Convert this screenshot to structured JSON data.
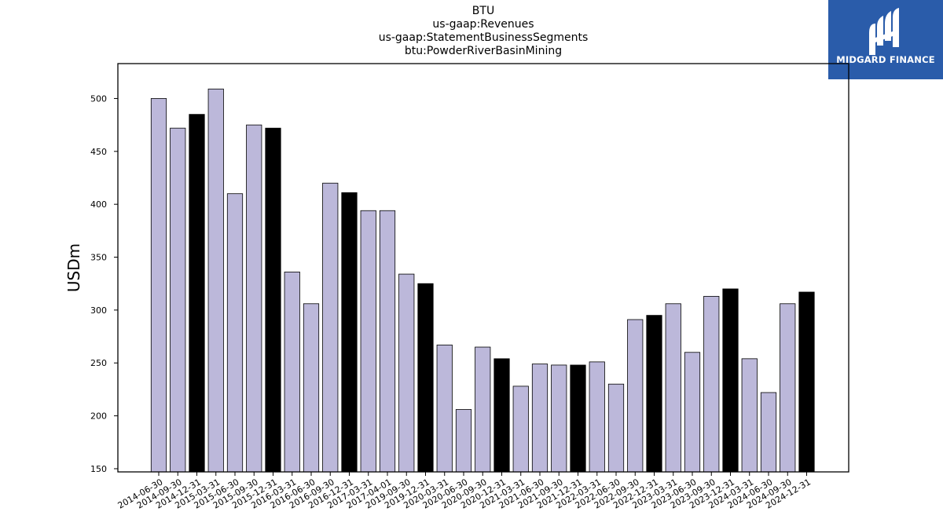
{
  "header": {
    "line1": "BTU",
    "line2": "us-gaap:Revenues",
    "line3": "us-gaap:StatementBusinessSegments",
    "line4": "btu:PowderRiverBasinMining"
  },
  "logo": {
    "text": "MIDGARD FINANCE",
    "color": "#2a5caa"
  },
  "colors": {
    "bar_default": "#bcb8da",
    "bar_highlight": "#000000",
    "bar_edge": "#000000"
  },
  "chart_data": {
    "type": "bar",
    "title": "BTU\nus-gaap:Revenues\nus-gaap:StatementBusinessSegments\nbtu:PowderRiverBasinMining",
    "xlabel": "",
    "ylabel": "USDm",
    "ylim": [
      147,
      533
    ],
    "yticks": [
      150,
      200,
      250,
      300,
      350,
      400,
      450,
      500
    ],
    "grid": false,
    "categories": [
      "2014-06-30",
      "2014-09-30",
      "2014-12-31",
      "2015-03-31",
      "2015-06-30",
      "2015-09-30",
      "2015-12-31",
      "2016-03-31",
      "2016-06-30",
      "2016-09-30",
      "2016-12-31",
      "2017-03-31",
      "2017-04-01",
      "2019-09-30",
      "2019-12-31",
      "2020-03-31",
      "2020-06-30",
      "2020-09-30",
      "2020-12-31",
      "2021-03-31",
      "2021-06-30",
      "2021-09-30",
      "2021-12-31",
      "2022-03-31",
      "2022-06-30",
      "2022-09-30",
      "2022-12-31",
      "2023-03-31",
      "2023-06-30",
      "2023-09-30",
      "2023-12-31",
      "2024-03-31",
      "2024-06-30",
      "2024-09-30",
      "2024-12-31"
    ],
    "values": [
      500,
      472,
      485,
      509,
      410,
      475,
      472,
      336,
      306,
      420,
      411,
      394,
      394,
      334,
      325,
      267,
      206,
      265,
      254,
      228,
      249,
      248,
      248,
      251,
      230,
      291,
      295,
      306,
      260,
      313,
      320,
      254,
      222,
      306,
      317
    ],
    "highlight": [
      false,
      false,
      true,
      false,
      false,
      false,
      true,
      false,
      false,
      false,
      true,
      false,
      false,
      false,
      true,
      false,
      false,
      false,
      true,
      false,
      false,
      false,
      true,
      false,
      false,
      false,
      true,
      false,
      false,
      false,
      true,
      false,
      false,
      false,
      true
    ]
  }
}
